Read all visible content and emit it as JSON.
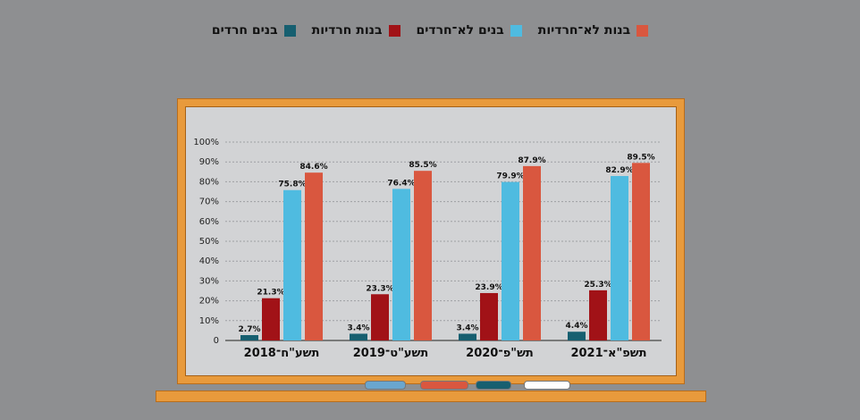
{
  "legend": [
    {
      "label": "בנות לא־חרדיות",
      "color": "#d9573f"
    },
    {
      "label": "בנים לא־חרדים",
      "color": "#4fbbe0"
    },
    {
      "label": "בנות חרדיות",
      "color": "#a11217"
    },
    {
      "label": "בנים חרדים",
      "color": "#165f70"
    }
  ],
  "chart_data": {
    "type": "bar",
    "categories": [
      "תשע\"ח־2018",
      "תשע\"ט־2019",
      "תש\"פ־2020",
      "תשפ\"א־2021"
    ],
    "series": [
      {
        "name": "בנים חרדים",
        "color": "#165f70",
        "values": [
          2.7,
          3.4,
          3.4,
          4.4
        ],
        "labels": [
          "2.7%",
          "3.4%",
          "3.4%",
          "4.4%"
        ]
      },
      {
        "name": "בנות חרדיות",
        "color": "#a11217",
        "values": [
          21.3,
          23.3,
          23.9,
          25.3
        ],
        "labels": [
          "21.3%",
          "23.3%",
          "23.9%",
          "25.3%"
        ]
      },
      {
        "name": "בנים לא־חרדים",
        "color": "#4fbbe0",
        "values": [
          75.8,
          76.4,
          79.9,
          82.9
        ],
        "labels": [
          "75.8%",
          "76.4%",
          "79.9%",
          "82.9%"
        ]
      },
      {
        "name": "בנות לא־חרדיות",
        "color": "#d9573f",
        "values": [
          84.6,
          85.5,
          87.9,
          89.5
        ],
        "labels": [
          "84.6%",
          "85.5%",
          "87.9%",
          "89.5%"
        ]
      }
    ],
    "yticks": [
      "0",
      "10%",
      "20%",
      "30%",
      "40%",
      "50%",
      "60%",
      "70%",
      "80%",
      "90%",
      "100%"
    ],
    "ylim": [
      0,
      100
    ],
    "grid": true,
    "legend_position": "top"
  },
  "markers": [
    {
      "color": "#6aa6cf"
    },
    {
      "color": "#d9573f"
    },
    {
      "color": "#165f70"
    },
    {
      "color": "#ffffff"
    }
  ]
}
